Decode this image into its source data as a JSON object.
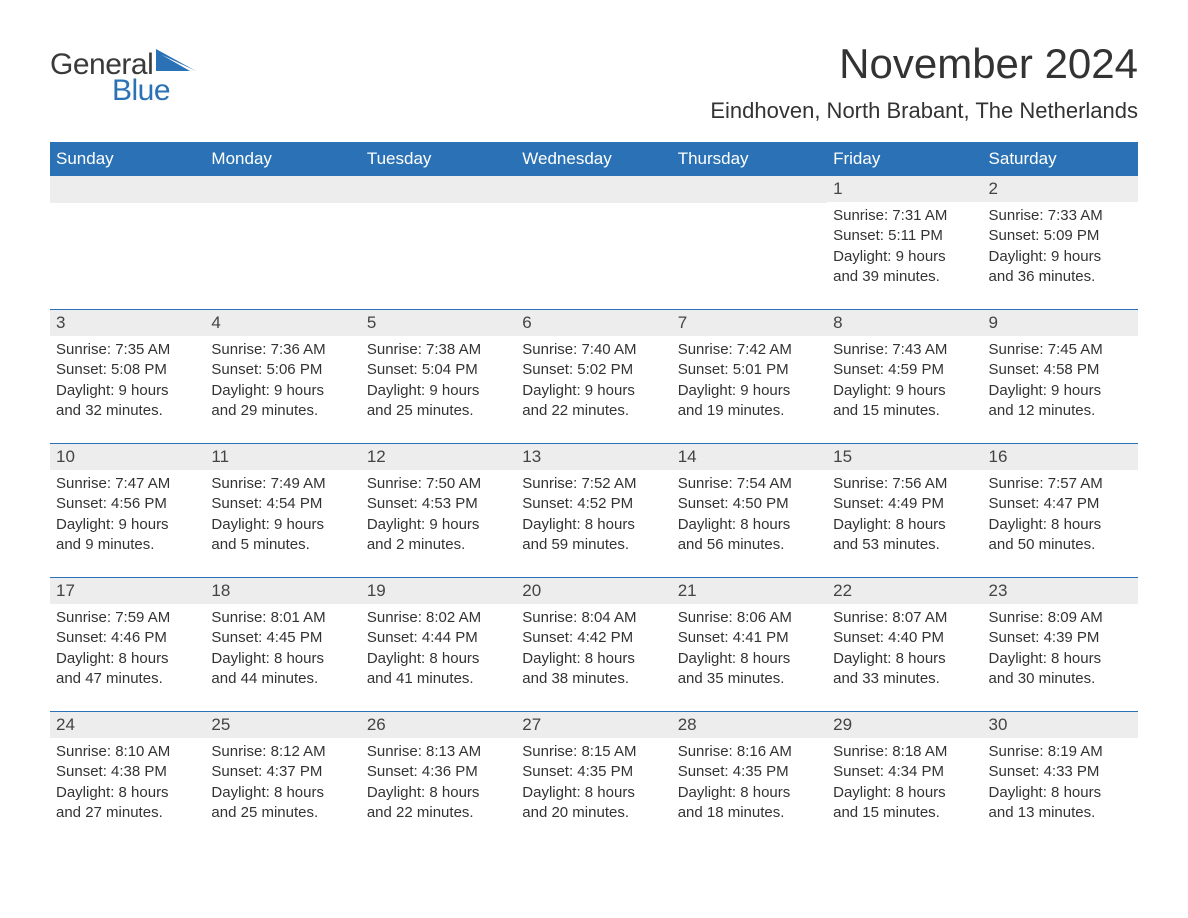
{
  "logo": {
    "text1": "General",
    "text2": "Blue"
  },
  "title": "November 2024",
  "location": "Eindhoven, North Brabant, The Netherlands",
  "colors": {
    "header_bg": "#2a72b5",
    "header_text": "#ffffff",
    "daynum_bg": "#ededed",
    "text": "#333333",
    "border": "#2a72b5",
    "logo_gray": "#3a3a3a",
    "logo_blue": "#2a72b5",
    "page_bg": "#ffffff"
  },
  "typography": {
    "title_fontsize": 42,
    "location_fontsize": 22,
    "header_fontsize": 17,
    "body_fontsize": 15,
    "logo_fontsize": 30
  },
  "day_names": [
    "Sunday",
    "Monday",
    "Tuesday",
    "Wednesday",
    "Thursday",
    "Friday",
    "Saturday"
  ],
  "weeks": [
    [
      null,
      null,
      null,
      null,
      null,
      {
        "n": "1",
        "sunrise": "Sunrise: 7:31 AM",
        "sunset": "Sunset: 5:11 PM",
        "d1": "Daylight: 9 hours",
        "d2": "and 39 minutes."
      },
      {
        "n": "2",
        "sunrise": "Sunrise: 7:33 AM",
        "sunset": "Sunset: 5:09 PM",
        "d1": "Daylight: 9 hours",
        "d2": "and 36 minutes."
      }
    ],
    [
      {
        "n": "3",
        "sunrise": "Sunrise: 7:35 AM",
        "sunset": "Sunset: 5:08 PM",
        "d1": "Daylight: 9 hours",
        "d2": "and 32 minutes."
      },
      {
        "n": "4",
        "sunrise": "Sunrise: 7:36 AM",
        "sunset": "Sunset: 5:06 PM",
        "d1": "Daylight: 9 hours",
        "d2": "and 29 minutes."
      },
      {
        "n": "5",
        "sunrise": "Sunrise: 7:38 AM",
        "sunset": "Sunset: 5:04 PM",
        "d1": "Daylight: 9 hours",
        "d2": "and 25 minutes."
      },
      {
        "n": "6",
        "sunrise": "Sunrise: 7:40 AM",
        "sunset": "Sunset: 5:02 PM",
        "d1": "Daylight: 9 hours",
        "d2": "and 22 minutes."
      },
      {
        "n": "7",
        "sunrise": "Sunrise: 7:42 AM",
        "sunset": "Sunset: 5:01 PM",
        "d1": "Daylight: 9 hours",
        "d2": "and 19 minutes."
      },
      {
        "n": "8",
        "sunrise": "Sunrise: 7:43 AM",
        "sunset": "Sunset: 4:59 PM",
        "d1": "Daylight: 9 hours",
        "d2": "and 15 minutes."
      },
      {
        "n": "9",
        "sunrise": "Sunrise: 7:45 AM",
        "sunset": "Sunset: 4:58 PM",
        "d1": "Daylight: 9 hours",
        "d2": "and 12 minutes."
      }
    ],
    [
      {
        "n": "10",
        "sunrise": "Sunrise: 7:47 AM",
        "sunset": "Sunset: 4:56 PM",
        "d1": "Daylight: 9 hours",
        "d2": "and 9 minutes."
      },
      {
        "n": "11",
        "sunrise": "Sunrise: 7:49 AM",
        "sunset": "Sunset: 4:54 PM",
        "d1": "Daylight: 9 hours",
        "d2": "and 5 minutes."
      },
      {
        "n": "12",
        "sunrise": "Sunrise: 7:50 AM",
        "sunset": "Sunset: 4:53 PM",
        "d1": "Daylight: 9 hours",
        "d2": "and 2 minutes."
      },
      {
        "n": "13",
        "sunrise": "Sunrise: 7:52 AM",
        "sunset": "Sunset: 4:52 PM",
        "d1": "Daylight: 8 hours",
        "d2": "and 59 minutes."
      },
      {
        "n": "14",
        "sunrise": "Sunrise: 7:54 AM",
        "sunset": "Sunset: 4:50 PM",
        "d1": "Daylight: 8 hours",
        "d2": "and 56 minutes."
      },
      {
        "n": "15",
        "sunrise": "Sunrise: 7:56 AM",
        "sunset": "Sunset: 4:49 PM",
        "d1": "Daylight: 8 hours",
        "d2": "and 53 minutes."
      },
      {
        "n": "16",
        "sunrise": "Sunrise: 7:57 AM",
        "sunset": "Sunset: 4:47 PM",
        "d1": "Daylight: 8 hours",
        "d2": "and 50 minutes."
      }
    ],
    [
      {
        "n": "17",
        "sunrise": "Sunrise: 7:59 AM",
        "sunset": "Sunset: 4:46 PM",
        "d1": "Daylight: 8 hours",
        "d2": "and 47 minutes."
      },
      {
        "n": "18",
        "sunrise": "Sunrise: 8:01 AM",
        "sunset": "Sunset: 4:45 PM",
        "d1": "Daylight: 8 hours",
        "d2": "and 44 minutes."
      },
      {
        "n": "19",
        "sunrise": "Sunrise: 8:02 AM",
        "sunset": "Sunset: 4:44 PM",
        "d1": "Daylight: 8 hours",
        "d2": "and 41 minutes."
      },
      {
        "n": "20",
        "sunrise": "Sunrise: 8:04 AM",
        "sunset": "Sunset: 4:42 PM",
        "d1": "Daylight: 8 hours",
        "d2": "and 38 minutes."
      },
      {
        "n": "21",
        "sunrise": "Sunrise: 8:06 AM",
        "sunset": "Sunset: 4:41 PM",
        "d1": "Daylight: 8 hours",
        "d2": "and 35 minutes."
      },
      {
        "n": "22",
        "sunrise": "Sunrise: 8:07 AM",
        "sunset": "Sunset: 4:40 PM",
        "d1": "Daylight: 8 hours",
        "d2": "and 33 minutes."
      },
      {
        "n": "23",
        "sunrise": "Sunrise: 8:09 AM",
        "sunset": "Sunset: 4:39 PM",
        "d1": "Daylight: 8 hours",
        "d2": "and 30 minutes."
      }
    ],
    [
      {
        "n": "24",
        "sunrise": "Sunrise: 8:10 AM",
        "sunset": "Sunset: 4:38 PM",
        "d1": "Daylight: 8 hours",
        "d2": "and 27 minutes."
      },
      {
        "n": "25",
        "sunrise": "Sunrise: 8:12 AM",
        "sunset": "Sunset: 4:37 PM",
        "d1": "Daylight: 8 hours",
        "d2": "and 25 minutes."
      },
      {
        "n": "26",
        "sunrise": "Sunrise: 8:13 AM",
        "sunset": "Sunset: 4:36 PM",
        "d1": "Daylight: 8 hours",
        "d2": "and 22 minutes."
      },
      {
        "n": "27",
        "sunrise": "Sunrise: 8:15 AM",
        "sunset": "Sunset: 4:35 PM",
        "d1": "Daylight: 8 hours",
        "d2": "and 20 minutes."
      },
      {
        "n": "28",
        "sunrise": "Sunrise: 8:16 AM",
        "sunset": "Sunset: 4:35 PM",
        "d1": "Daylight: 8 hours",
        "d2": "and 18 minutes."
      },
      {
        "n": "29",
        "sunrise": "Sunrise: 8:18 AM",
        "sunset": "Sunset: 4:34 PM",
        "d1": "Daylight: 8 hours",
        "d2": "and 15 minutes."
      },
      {
        "n": "30",
        "sunrise": "Sunrise: 8:19 AM",
        "sunset": "Sunset: 4:33 PM",
        "d1": "Daylight: 8 hours",
        "d2": "and 13 minutes."
      }
    ]
  ]
}
